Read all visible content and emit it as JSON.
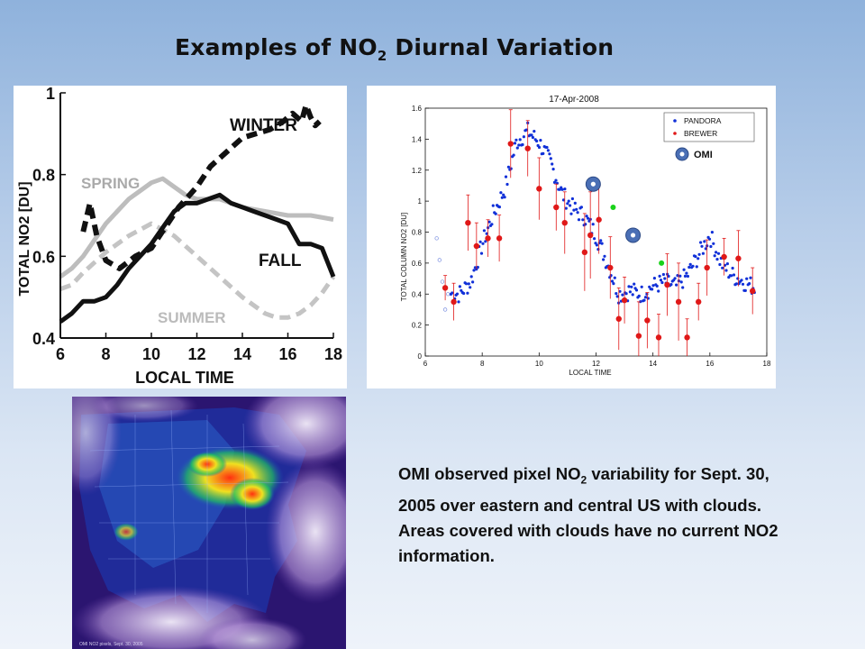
{
  "slide": {
    "title_prefix": "Examples of NO",
    "title_sub": "2",
    "title_suffix": " Diurnal Variation",
    "caption_part1": "OMI observed pixel NO",
    "caption_sub": "2",
    "caption_part2": " variability for Sept. 30, 2005 over eastern and central US with clouds.  Areas covered with clouds have no current NO2 information."
  },
  "colors": {
    "pandora": "#1030d8",
    "brewer": "#e01818",
    "omi_green": "#19d219",
    "omi_ring": "#4a6fb5"
  },
  "chart_data": [
    {
      "type": "line",
      "xlabel": "LOCAL TIME",
      "ylabel": "TOTAL NO2 [DU]",
      "xlim": [
        6,
        18
      ],
      "ylim": [
        0.4,
        1.0
      ],
      "xticks": [
        "6",
        "8",
        "10",
        "12",
        "14",
        "16",
        "18"
      ],
      "yticks": [
        "0.4",
        "0.6",
        "0.8",
        "1"
      ],
      "series": [
        {
          "name": "WINTER",
          "style": "black-dashed",
          "x": [
            7.0,
            7.3,
            7.6,
            8.0,
            8.6,
            9.3,
            10.0,
            10.6,
            11.2,
            12.0,
            12.6,
            13.2,
            14.0,
            14.6,
            15.2,
            15.8,
            16.2,
            16.6,
            16.8,
            17.0,
            17.2,
            17.4
          ],
          "y": [
            0.66,
            0.73,
            0.65,
            0.59,
            0.57,
            0.6,
            0.62,
            0.67,
            0.72,
            0.77,
            0.82,
            0.85,
            0.89,
            0.9,
            0.91,
            0.93,
            0.95,
            0.93,
            0.97,
            0.94,
            0.92,
            0.93
          ]
        },
        {
          "name": "SPRING",
          "style": "gray-solid",
          "x": [
            6,
            6.5,
            7,
            7.5,
            8,
            8.5,
            9,
            9.5,
            10,
            10.5,
            11,
            11.5,
            12,
            12.5,
            13,
            13.5,
            14,
            15,
            16,
            17,
            18
          ],
          "y": [
            0.55,
            0.57,
            0.6,
            0.64,
            0.68,
            0.71,
            0.74,
            0.76,
            0.78,
            0.79,
            0.77,
            0.75,
            0.74,
            0.74,
            0.74,
            0.73,
            0.72,
            0.71,
            0.7,
            0.7,
            0.69
          ]
        },
        {
          "name": "SUMMER",
          "style": "gray-dashed",
          "x": [
            6,
            6.5,
            7,
            8,
            9,
            10,
            11,
            12,
            13,
            14,
            15,
            15.5,
            16,
            16.5,
            17,
            17.5,
            18
          ],
          "y": [
            0.52,
            0.53,
            0.56,
            0.61,
            0.65,
            0.68,
            0.65,
            0.6,
            0.55,
            0.5,
            0.46,
            0.45,
            0.45,
            0.46,
            0.48,
            0.51,
            0.55
          ]
        },
        {
          "name": "FALL",
          "style": "black-solid",
          "x": [
            6,
            6.5,
            7,
            7.5,
            8,
            8.5,
            9,
            9.5,
            10,
            10.5,
            11,
            11.5,
            12,
            12.5,
            13,
            13.5,
            14,
            14.5,
            15,
            15.5,
            16,
            16.5,
            17,
            17.5,
            18
          ],
          "y": [
            0.44,
            0.46,
            0.49,
            0.49,
            0.5,
            0.53,
            0.57,
            0.6,
            0.63,
            0.67,
            0.71,
            0.73,
            0.73,
            0.74,
            0.75,
            0.73,
            0.72,
            0.71,
            0.7,
            0.69,
            0.68,
            0.63,
            0.63,
            0.62,
            0.55
          ]
        }
      ]
    },
    {
      "type": "scatter",
      "title": "17-Apr-2008",
      "xlabel": "LOCAL TIME",
      "ylabel": "TOTAL COLUMN NO2 [DU]",
      "xlim": [
        6,
        18
      ],
      "ylim": [
        0,
        1.6
      ],
      "xticks": [
        "6",
        "8",
        "10",
        "12",
        "14",
        "16",
        "18"
      ],
      "yticks": [
        "0",
        "0.2",
        "0.4",
        "0.6",
        "0.8",
        "1",
        "1.2",
        "1.4",
        "1.6"
      ],
      "legend": [
        "PANDORA",
        "BREWER"
      ],
      "legend_position": "top-right",
      "omi_label": "OMI",
      "pandora_profile": {
        "x": [
          6.4,
          6.8,
          7.2,
          7.6,
          8.0,
          8.4,
          8.8,
          9.2,
          9.6,
          10.0,
          10.4,
          10.8,
          11.2,
          11.6,
          12.0,
          12.4,
          12.8,
          13.2,
          13.6,
          14.0,
          14.4,
          14.8,
          15.2,
          15.6,
          16.0,
          16.4,
          16.8,
          17.2,
          17.6
        ],
        "y": [
          0.42,
          0.4,
          0.4,
          0.48,
          0.72,
          0.92,
          1.08,
          1.38,
          1.45,
          1.38,
          1.25,
          1.05,
          0.95,
          0.9,
          0.78,
          0.6,
          0.4,
          0.42,
          0.4,
          0.45,
          0.48,
          0.45,
          0.52,
          0.65,
          0.78,
          0.6,
          0.52,
          0.48,
          0.44
        ]
      },
      "open_circles": {
        "x": [
          6.4,
          6.5,
          6.6,
          6.7,
          6.8
        ],
        "y": [
          0.76,
          0.62,
          0.48,
          0.3,
          0.4
        ]
      },
      "brewer": {
        "x": [
          6.7,
          7.0,
          7.5,
          7.8,
          8.2,
          8.6,
          9.0,
          9.6,
          10.0,
          10.6,
          10.9,
          11.6,
          11.8,
          12.1,
          12.5,
          12.8,
          13.0,
          13.5,
          13.8,
          14.2,
          14.5,
          14.9,
          15.2,
          15.6,
          15.9,
          16.5,
          17.0,
          17.5
        ],
        "y": [
          0.44,
          0.35,
          0.86,
          0.71,
          0.76,
          0.76,
          1.37,
          1.34,
          1.08,
          0.96,
          0.86,
          0.67,
          0.78,
          0.88,
          0.57,
          0.24,
          0.36,
          0.13,
          0.23,
          0.12,
          0.46,
          0.35,
          0.12,
          0.35,
          0.57,
          0.64,
          0.63,
          0.42
        ],
        "err": [
          0.08,
          0.12,
          0.18,
          0.15,
          0.12,
          0.15,
          0.22,
          0.18,
          0.2,
          0.15,
          0.2,
          0.25,
          0.28,
          0.22,
          0.2,
          0.2,
          0.15,
          0.22,
          0.18,
          0.15,
          0.2,
          0.25,
          0.12,
          0.12,
          0.18,
          0.12,
          0.18,
          0.15
        ]
      },
      "omi_green": {
        "x": [
          12.6,
          14.3
        ],
        "y": [
          0.96,
          0.6
        ]
      },
      "omi_rings": {
        "x": [
          11.9,
          13.3
        ],
        "y": [
          1.11,
          0.78
        ]
      }
    }
  ],
  "map": {
    "footer": "OMI NO2 pixels, Sept. 30, 2005"
  }
}
